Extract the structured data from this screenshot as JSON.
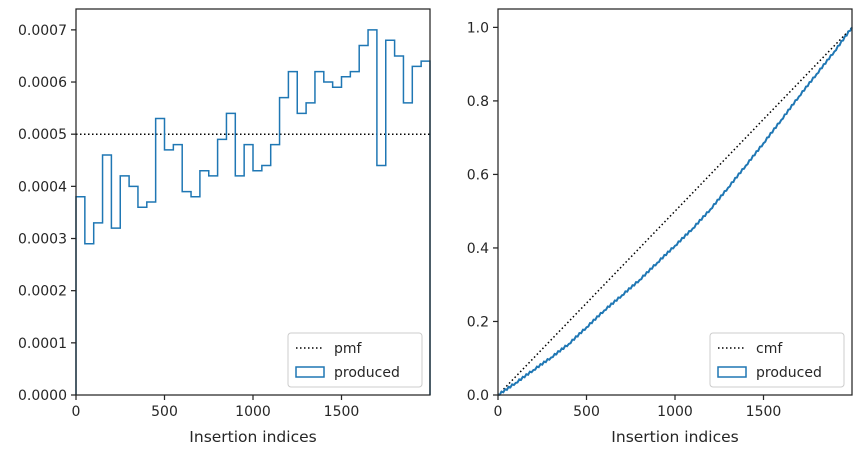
{
  "chart_data": [
    {
      "type": "histogram-step",
      "title": "",
      "xlabel": "Insertion indices",
      "ylabel": "",
      "xlim": [
        0,
        2000
      ],
      "ylim": [
        0,
        0.00074
      ],
      "xticks": [
        0,
        500,
        1000,
        1500
      ],
      "xtick_labels": [
        "0",
        "500",
        "1000",
        "1500"
      ],
      "yticks": [
        0,
        0.0001,
        0.0002,
        0.0003,
        0.0004,
        0.0005,
        0.0006,
        0.0007
      ],
      "ytick_labels": [
        "0.0000",
        "0.0001",
        "0.0002",
        "0.0003",
        "0.0004",
        "0.0005",
        "0.0006",
        "0.0007"
      ],
      "legend": {
        "position": "bottom-right",
        "entries": [
          {
            "label": "pmf",
            "style": "dotted",
            "color": "#000000"
          },
          {
            "label": "produced",
            "style": "patch",
            "color": "#1f77b4"
          }
        ]
      },
      "series": [
        {
          "name": "pmf",
          "style": "dotted",
          "color": "#000000",
          "y": 0.0005
        },
        {
          "name": "produced",
          "style": "step",
          "color": "#1f77b4",
          "bin_width": 50,
          "bin_start": 0,
          "values": [
            0.00038,
            0.00029,
            0.00033,
            0.00046,
            0.00032,
            0.00042,
            0.0004,
            0.00036,
            0.00037,
            0.00053,
            0.00047,
            0.00048,
            0.00039,
            0.00038,
            0.00043,
            0.00042,
            0.00049,
            0.00054,
            0.00042,
            0.00048,
            0.00043,
            0.00044,
            0.00048,
            0.00057,
            0.00062,
            0.00054,
            0.00056,
            0.00062,
            0.0006,
            0.00059,
            0.00061,
            0.00062,
            0.00067,
            0.0007,
            0.00044,
            0.00068,
            0.00065,
            0.00056,
            0.00063,
            0.00064
          ]
        }
      ]
    },
    {
      "type": "line",
      "title": "",
      "xlabel": "Insertion indices",
      "ylabel": "",
      "xlim": [
        0,
        2000
      ],
      "ylim": [
        0,
        1.05
      ],
      "xticks": [
        0,
        500,
        1000,
        1500
      ],
      "xtick_labels": [
        "0",
        "500",
        "1000",
        "1500"
      ],
      "yticks": [
        0,
        0.2,
        0.4,
        0.6,
        0.8,
        1.0
      ],
      "ytick_labels": [
        "0.0",
        "0.2",
        "0.4",
        "0.6",
        "0.8",
        "1.0"
      ],
      "legend": {
        "position": "bottom-right",
        "entries": [
          {
            "label": "cmf",
            "style": "dotted",
            "color": "#000000"
          },
          {
            "label": "produced",
            "style": "patch",
            "color": "#1f77b4"
          }
        ]
      },
      "series": [
        {
          "name": "cmf",
          "style": "dotted",
          "color": "#000000",
          "x": [
            0,
            2000
          ],
          "y": [
            0,
            1.0
          ]
        },
        {
          "name": "produced",
          "style": "line",
          "color": "#1f77b4",
          "x": [
            0,
            100,
            200,
            300,
            400,
            500,
            600,
            700,
            800,
            900,
            1000,
            1100,
            1200,
            1300,
            1400,
            1500,
            1600,
            1700,
            1800,
            1900,
            2000
          ],
          "y": [
            0,
            0.033,
            0.068,
            0.102,
            0.139,
            0.184,
            0.23,
            0.271,
            0.313,
            0.36,
            0.406,
            0.453,
            0.505,
            0.564,
            0.624,
            0.685,
            0.748,
            0.812,
            0.873,
            0.934,
            1.0
          ]
        }
      ]
    }
  ]
}
